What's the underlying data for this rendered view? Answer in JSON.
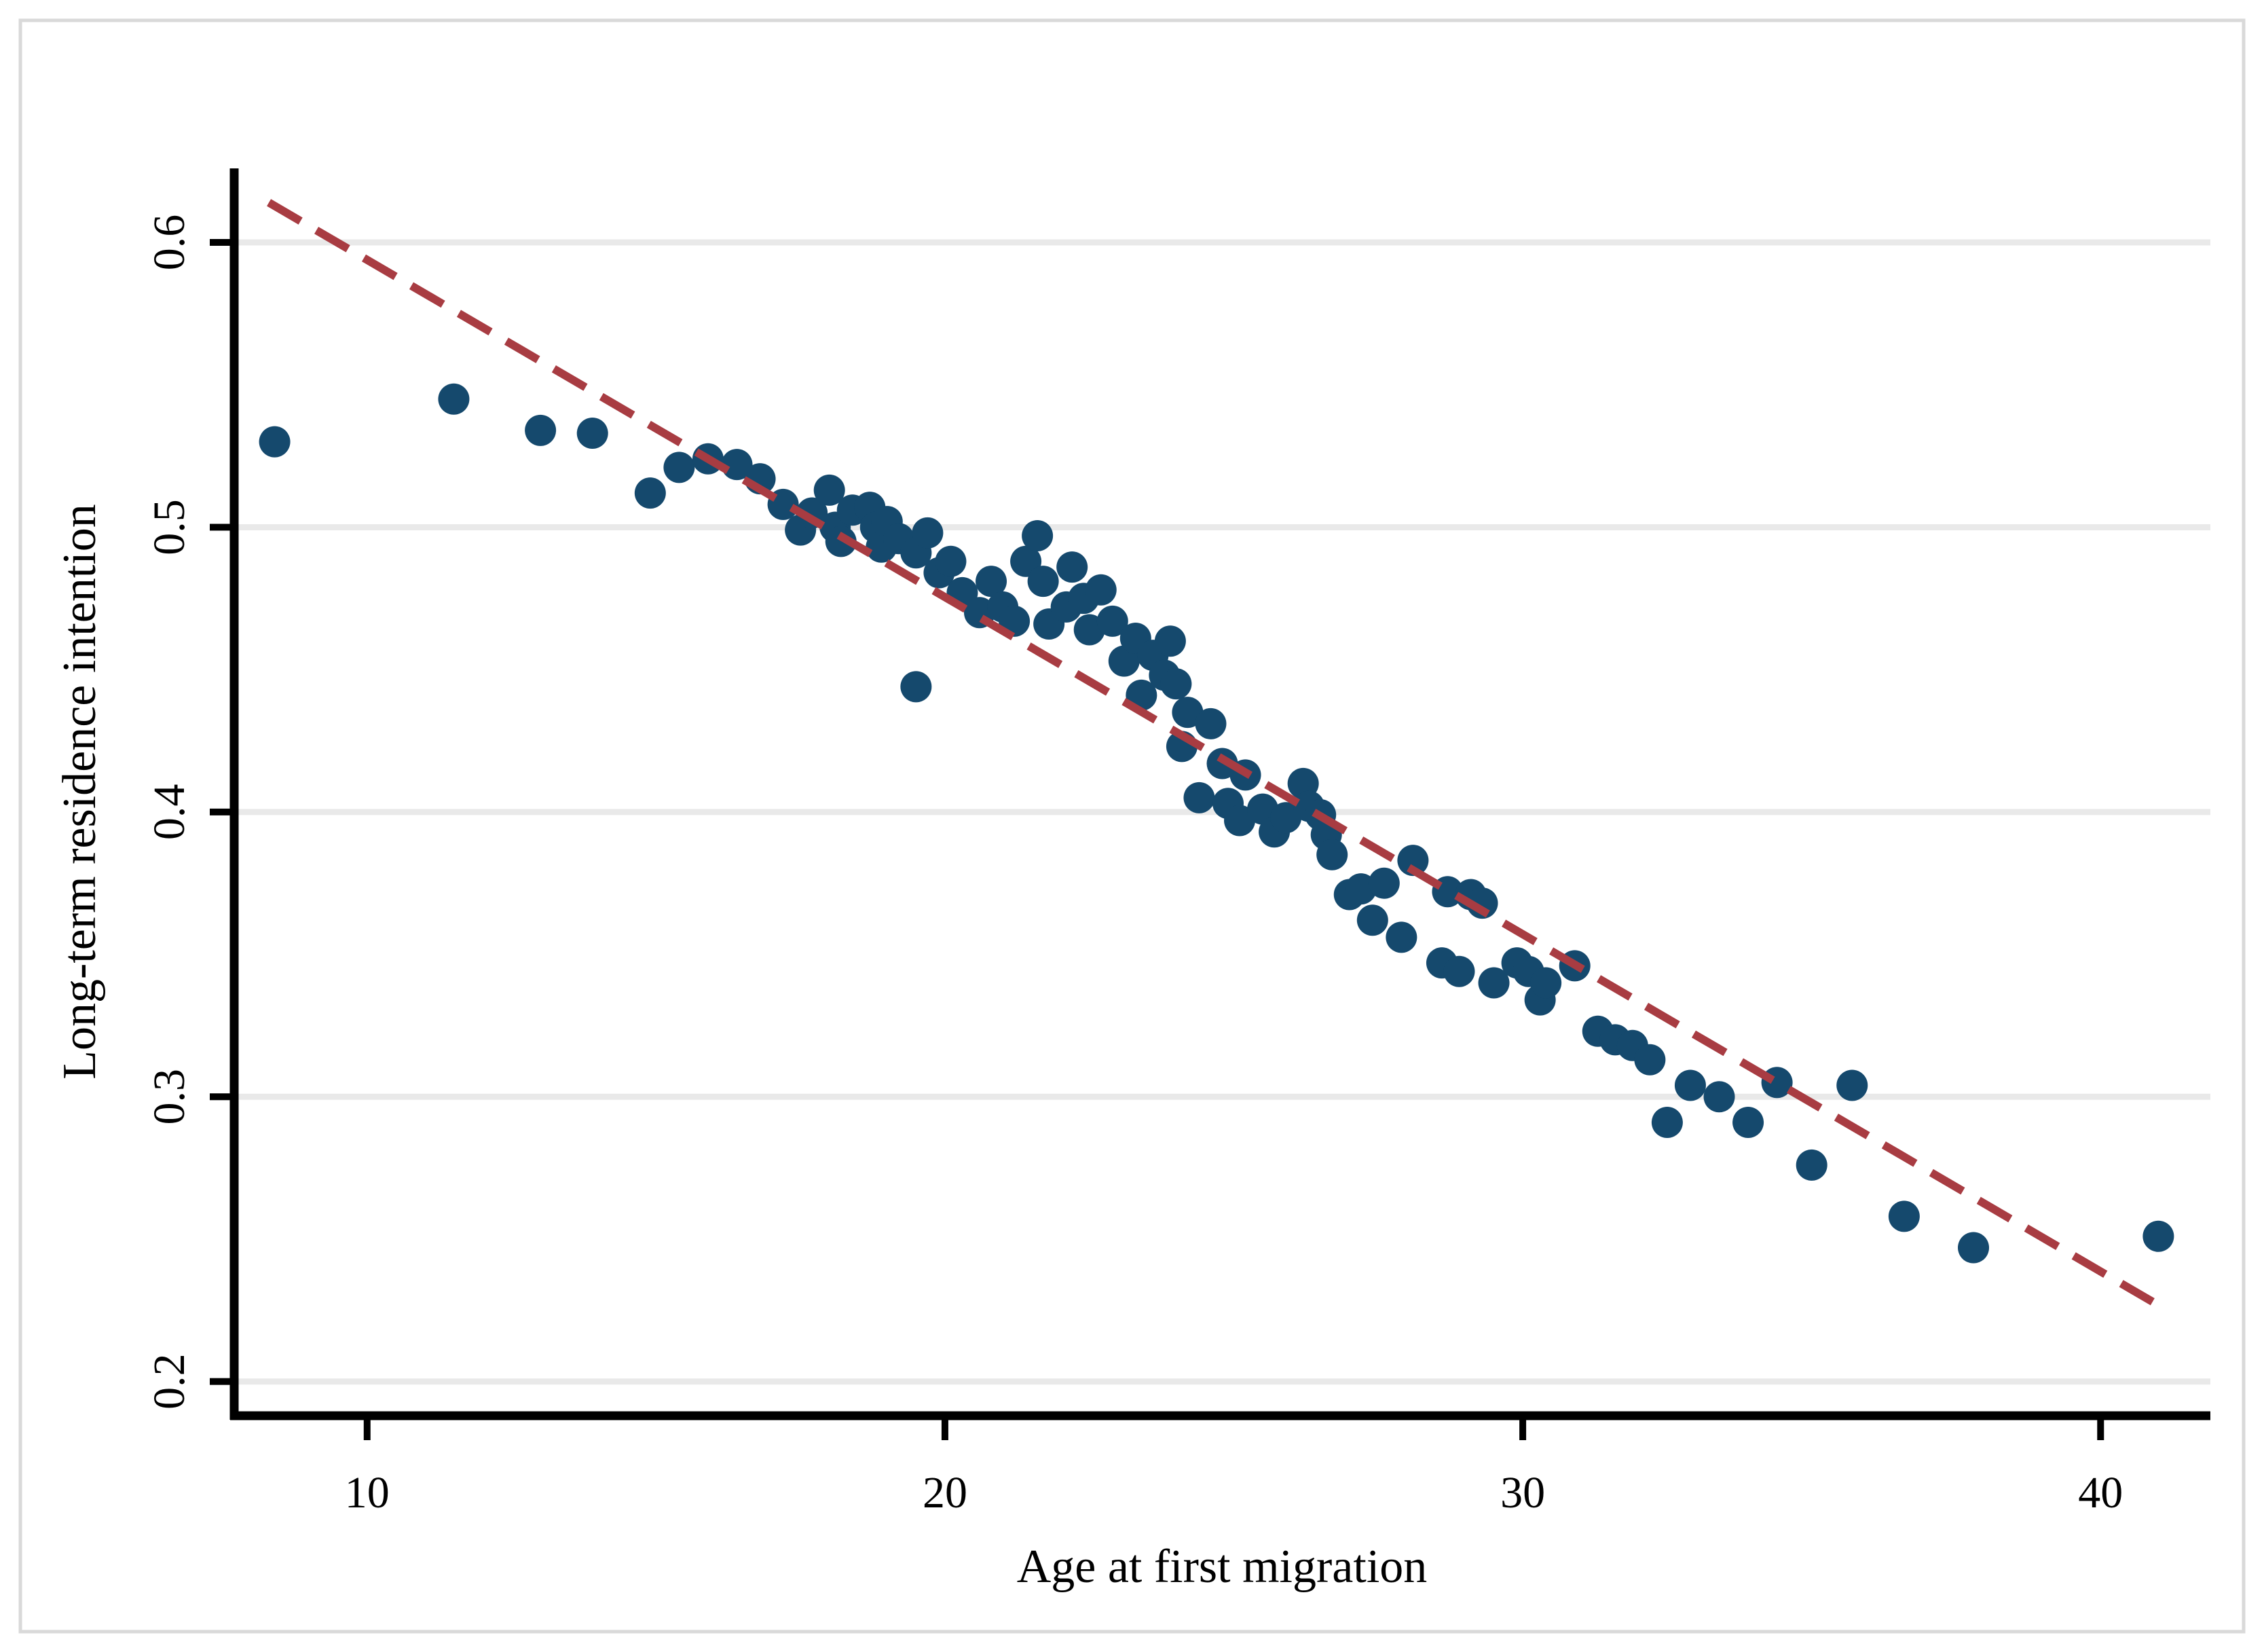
{
  "figure": {
    "background": "#ffffff",
    "border_color": "#d9d9d9"
  },
  "chart_data": {
    "type": "scatter",
    "title": "",
    "xlabel": "Age at first migration",
    "ylabel": "Long-term residence intention",
    "x_tick_values": [
      10,
      20,
      30,
      40
    ],
    "x_tick_labels": [
      "10",
      "20",
      "30",
      "40"
    ],
    "y_tick_values": [
      0.2,
      0.3,
      0.4,
      0.5,
      0.6
    ],
    "y_tick_labels": [
      "0.2",
      "0.3",
      "0.4",
      "0.5",
      "0.6"
    ],
    "xlim": [
      7.7,
      41.9
    ],
    "ylim": [
      0.188,
      0.626
    ],
    "grid": "horizontal-only",
    "legend": "none",
    "point_color": "#15496d",
    "trend_color": "#a83c42",
    "grid_color": "#e9e9e9",
    "axis_color": "#000000",
    "trend_line": {
      "style": "dashed",
      "x1": 8.3,
      "y1": 0.614,
      "x2": 40.9,
      "y2": 0.228
    },
    "points": [
      [
        8.4,
        0.53
      ],
      [
        11.5,
        0.545
      ],
      [
        13.0,
        0.534
      ],
      [
        13.9,
        0.533
      ],
      [
        14.9,
        0.512
      ],
      [
        15.4,
        0.521
      ],
      [
        15.9,
        0.524
      ],
      [
        16.4,
        0.522
      ],
      [
        16.8,
        0.517
      ],
      [
        17.2,
        0.508
      ],
      [
        17.5,
        0.499
      ],
      [
        17.7,
        0.505
      ],
      [
        18.0,
        0.513
      ],
      [
        18.1,
        0.5
      ],
      [
        18.2,
        0.495
      ],
      [
        18.4,
        0.506
      ],
      [
        18.7,
        0.507
      ],
      [
        18.8,
        0.5
      ],
      [
        18.9,
        0.493
      ],
      [
        19.0,
        0.502
      ],
      [
        19.2,
        0.496
      ],
      [
        19.5,
        0.444
      ],
      [
        19.5,
        0.491
      ],
      [
        19.7,
        0.498
      ],
      [
        19.9,
        0.484
      ],
      [
        20.1,
        0.488
      ],
      [
        20.3,
        0.477
      ],
      [
        20.6,
        0.47
      ],
      [
        20.8,
        0.481
      ],
      [
        21.0,
        0.472
      ],
      [
        21.2,
        0.467
      ],
      [
        21.4,
        0.488
      ],
      [
        21.6,
        0.497
      ],
      [
        21.7,
        0.481
      ],
      [
        21.8,
        0.466
      ],
      [
        22.1,
        0.472
      ],
      [
        22.2,
        0.486
      ],
      [
        22.4,
        0.475
      ],
      [
        22.5,
        0.464
      ],
      [
        22.7,
        0.478
      ],
      [
        22.9,
        0.467
      ],
      [
        23.1,
        0.453
      ],
      [
        23.3,
        0.461
      ],
      [
        23.4,
        0.441
      ],
      [
        23.6,
        0.455
      ],
      [
        23.8,
        0.448
      ],
      [
        23.9,
        0.46
      ],
      [
        24.0,
        0.445
      ],
      [
        24.1,
        0.423
      ],
      [
        24.2,
        0.435
      ],
      [
        24.4,
        0.405
      ],
      [
        24.6,
        0.431
      ],
      [
        24.8,
        0.417
      ],
      [
        24.9,
        0.403
      ],
      [
        25.1,
        0.397
      ],
      [
        25.2,
        0.413
      ],
      [
        25.5,
        0.401
      ],
      [
        25.7,
        0.393
      ],
      [
        25.9,
        0.398
      ],
      [
        26.2,
        0.41
      ],
      [
        26.3,
        0.402
      ],
      [
        26.5,
        0.399
      ],
      [
        26.6,
        0.392
      ],
      [
        26.7,
        0.385
      ],
      [
        27.0,
        0.371
      ],
      [
        27.2,
        0.373
      ],
      [
        27.4,
        0.362
      ],
      [
        27.6,
        0.375
      ],
      [
        27.9,
        0.356
      ],
      [
        28.1,
        0.383
      ],
      [
        28.6,
        0.347
      ],
      [
        28.7,
        0.372
      ],
      [
        28.9,
        0.344
      ],
      [
        29.1,
        0.371
      ],
      [
        29.3,
        0.368
      ],
      [
        29.5,
        0.34
      ],
      [
        29.9,
        0.347
      ],
      [
        30.1,
        0.344
      ],
      [
        30.3,
        0.334
      ],
      [
        30.4,
        0.34
      ],
      [
        30.9,
        0.346
      ],
      [
        31.3,
        0.323
      ],
      [
        31.6,
        0.32
      ],
      [
        31.9,
        0.318
      ],
      [
        32.2,
        0.313
      ],
      [
        32.5,
        0.291
      ],
      [
        32.9,
        0.304
      ],
      [
        33.4,
        0.3
      ],
      [
        33.9,
        0.291
      ],
      [
        34.4,
        0.305
      ],
      [
        35.0,
        0.276
      ],
      [
        35.7,
        0.304
      ],
      [
        36.6,
        0.258
      ],
      [
        37.8,
        0.247
      ],
      [
        41.0,
        0.251
      ]
    ]
  }
}
